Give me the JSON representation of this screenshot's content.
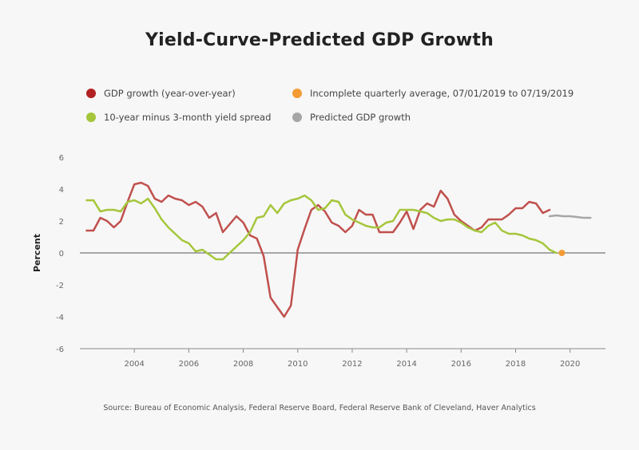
{
  "chart_data": {
    "type": "line",
    "title": "Yield-Curve-Predicted GDP Growth",
    "ylabel": "Percent",
    "xlabel": "",
    "xlim": [
      2002.0,
      2021.3
    ],
    "ylim": [
      -6,
      6
    ],
    "yticks": [
      "6",
      "4",
      "2",
      "0",
      "-2",
      "-4",
      "-6"
    ],
    "xticks": [
      "2004",
      "2006",
      "2008",
      "2010",
      "2012",
      "2014",
      "2016",
      "2018",
      "2020"
    ],
    "grid": false,
    "legend": "top",
    "legend_entries": [
      {
        "name": "GDP growth (year-over-year)",
        "color": "#b22222"
      },
      {
        "name": "Incomplete quarterly average, 07/01/2019 to 07/19/2019",
        "color": "#f39c34"
      },
      {
        "name": "10-year minus 3-month yield spread",
        "color": "#a5c63b"
      },
      {
        "name": "Predicted GDP growth",
        "color": "#a6a6a6"
      }
    ],
    "series": [
      {
        "name": "GDP growth (year-over-year)",
        "color": "#c0504d",
        "x": [
          2002.25,
          2002.5,
          2002.75,
          2003.0,
          2003.25,
          2003.5,
          2003.75,
          2004.0,
          2004.25,
          2004.5,
          2004.75,
          2005.0,
          2005.25,
          2005.5,
          2005.75,
          2006.0,
          2006.25,
          2006.5,
          2006.75,
          2007.0,
          2007.25,
          2007.5,
          2007.75,
          2008.0,
          2008.25,
          2008.5,
          2008.75,
          2009.0,
          2009.25,
          2009.5,
          2009.75,
          2010.0,
          2010.25,
          2010.5,
          2010.75,
          2011.0,
          2011.25,
          2011.5,
          2011.75,
          2012.0,
          2012.25,
          2012.5,
          2012.75,
          2013.0,
          2013.25,
          2013.5,
          2013.75,
          2014.0,
          2014.25,
          2014.5,
          2014.75,
          2015.0,
          2015.25,
          2015.5,
          2015.75,
          2016.0,
          2016.25,
          2016.5,
          2016.75,
          2017.0,
          2017.25,
          2017.5,
          2017.75,
          2018.0,
          2018.25,
          2018.5,
          2018.75,
          2019.0,
          2019.25
        ],
        "values": [
          1.4,
          1.4,
          2.2,
          2.0,
          1.6,
          2.0,
          3.2,
          4.3,
          4.4,
          4.2,
          3.4,
          3.2,
          3.6,
          3.4,
          3.3,
          3.0,
          3.2,
          2.9,
          2.2,
          2.5,
          1.3,
          1.8,
          2.3,
          1.9,
          1.1,
          0.9,
          -0.2,
          -2.8,
          -3.4,
          -4.0,
          -3.3,
          0.2,
          1.5,
          2.7,
          3.0,
          2.6,
          1.9,
          1.7,
          1.3,
          1.7,
          2.7,
          2.4,
          2.4,
          1.3,
          1.3,
          1.3,
          1.9,
          2.6,
          1.5,
          2.7,
          3.1,
          2.9,
          3.9,
          3.4,
          2.4,
          2.0,
          1.7,
          1.4,
          1.6,
          2.1,
          2.1,
          2.1,
          2.4,
          2.8,
          2.8,
          3.2,
          3.1,
          2.5,
          2.7
        ]
      },
      {
        "name": "10-year minus 3-month yield spread",
        "color": "#a5c63b",
        "x": [
          2002.25,
          2002.5,
          2002.75,
          2003.0,
          2003.25,
          2003.5,
          2003.75,
          2004.0,
          2004.25,
          2004.5,
          2004.75,
          2005.0,
          2005.25,
          2005.5,
          2005.75,
          2006.0,
          2006.25,
          2006.5,
          2006.75,
          2007.0,
          2007.25,
          2007.5,
          2007.75,
          2008.0,
          2008.25,
          2008.5,
          2008.75,
          2009.0,
          2009.25,
          2009.5,
          2009.75,
          2010.0,
          2010.25,
          2010.5,
          2010.75,
          2011.0,
          2011.25,
          2011.5,
          2011.75,
          2012.0,
          2012.25,
          2012.5,
          2012.75,
          2013.0,
          2013.25,
          2013.5,
          2013.75,
          2014.0,
          2014.25,
          2014.5,
          2014.75,
          2015.0,
          2015.25,
          2015.5,
          2015.75,
          2016.0,
          2016.25,
          2016.5,
          2016.75,
          2017.0,
          2017.25,
          2017.5,
          2017.75,
          2018.0,
          2018.25,
          2018.5,
          2018.75,
          2019.0,
          2019.25,
          2019.5
        ],
        "values": [
          3.3,
          3.3,
          2.6,
          2.7,
          2.7,
          2.6,
          3.2,
          3.3,
          3.1,
          3.4,
          2.8,
          2.1,
          1.6,
          1.2,
          0.8,
          0.6,
          0.1,
          0.2,
          -0.1,
          -0.4,
          -0.4,
          0.0,
          0.4,
          0.8,
          1.3,
          2.2,
          2.3,
          3.0,
          2.5,
          3.1,
          3.3,
          3.4,
          3.6,
          3.3,
          2.7,
          2.8,
          3.3,
          3.2,
          2.4,
          2.1,
          1.9,
          1.7,
          1.6,
          1.6,
          1.9,
          2.0,
          2.7,
          2.7,
          2.7,
          2.6,
          2.5,
          2.2,
          2.0,
          2.1,
          2.1,
          1.9,
          1.6,
          1.4,
          1.3,
          1.7,
          1.9,
          1.4,
          1.2,
          1.2,
          1.1,
          0.9,
          0.8,
          0.6,
          0.2,
          0.0
        ]
      },
      {
        "name": "Predicted GDP growth",
        "color": "#a6a6a6",
        "x": [
          2019.25,
          2019.5,
          2019.75,
          2020.0,
          2020.25,
          2020.5,
          2020.75
        ],
        "values": [
          2.3,
          2.35,
          2.3,
          2.3,
          2.25,
          2.2,
          2.2
        ]
      },
      {
        "name": "Incomplete quarterly average, 07/01/2019 to 07/19/2019",
        "color": "#f39c34",
        "marker": "point",
        "x": [
          2019.7
        ],
        "values": [
          0.0
        ]
      }
    ],
    "source": "Source: Bureau of Economic Analysis, Federal Reserve Board, Federal Reserve Bank of Cleveland, Haver Analytics"
  }
}
